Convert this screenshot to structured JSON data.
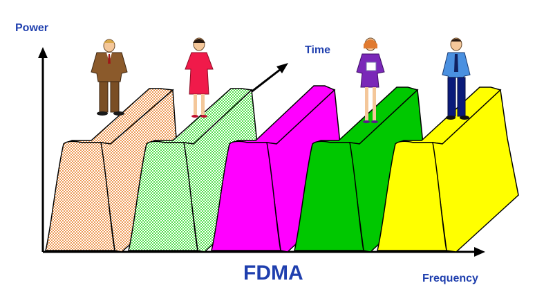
{
  "labels": {
    "power": "Power",
    "time": "Time",
    "frequency": "Frequency",
    "title": "FDMA"
  },
  "colors": {
    "label_text": "#1f3fae",
    "axis": "#000000",
    "channels": [
      "#f0a060",
      "#7ef07a",
      "#ff00ff",
      "#00c800",
      "#ffff00"
    ]
  },
  "channels": [
    {
      "name": "channel-1",
      "fill": "#f0a060",
      "pattern": "checker",
      "person": "man-brown-suit"
    },
    {
      "name": "channel-2",
      "fill": "#7ef07a",
      "pattern": "checker",
      "person": "woman-red-dress"
    },
    {
      "name": "channel-3",
      "fill": "#ff00ff",
      "pattern": "solid",
      "person": ""
    },
    {
      "name": "channel-4",
      "fill": "#00c800",
      "pattern": "solid",
      "person": "woman-purple-outfit"
    },
    {
      "name": "channel-5",
      "fill": "#ffff00",
      "pattern": "solid",
      "person": "man-blue-shirt"
    }
  ]
}
